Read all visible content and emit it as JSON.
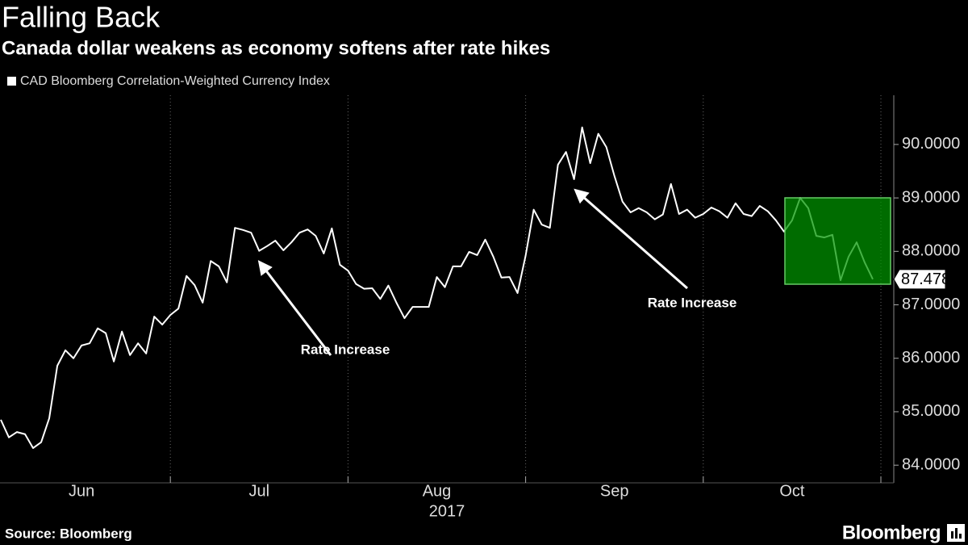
{
  "chart_data": {
    "type": "line",
    "title": "Falling Back",
    "subtitle": "Canada dollar weakens as economy softens after rate hikes",
    "xlabel": "2017",
    "source": "Source: Bloomberg",
    "brand": "Bloomberg",
    "categories": [
      null,
      null,
      null,
      null,
      null,
      null,
      null,
      null,
      null,
      null,
      "Jun",
      null,
      null,
      null,
      null,
      null,
      null,
      null,
      null,
      null,
      null,
      null,
      null,
      null,
      null,
      null,
      null,
      null,
      null,
      null,
      null,
      null,
      "Jul",
      null,
      null,
      null,
      null,
      null,
      null,
      null,
      null,
      null,
      null,
      null,
      null,
      null,
      null,
      null,
      null,
      null,
      null,
      null,
      null,
      null,
      "Aug",
      null,
      null,
      null,
      null,
      null,
      null,
      null,
      null,
      null,
      null,
      null,
      null,
      null,
      null,
      null,
      null,
      null,
      null,
      null,
      null,
      null,
      "Sep",
      null,
      null,
      null,
      null,
      null,
      null,
      null,
      null,
      null,
      null,
      null,
      null,
      null,
      null,
      null,
      null,
      null,
      null,
      null,
      null,
      null,
      "Oct",
      null,
      null,
      null,
      null,
      null,
      null,
      null,
      null,
      null,
      null
    ],
    "series": [
      {
        "name": "CAD Bloomberg Correlation-Weighted Currency Index",
        "color": "#ffffff",
        "values": [
          84.85,
          84.52,
          84.62,
          84.58,
          84.32,
          84.43,
          84.88,
          85.86,
          86.15,
          86.0,
          86.24,
          86.28,
          86.56,
          86.47,
          85.94,
          86.5,
          86.06,
          86.28,
          86.09,
          86.78,
          86.63,
          86.81,
          86.93,
          87.54,
          87.37,
          87.04,
          87.82,
          87.72,
          87.42,
          88.44,
          88.4,
          88.35,
          88.01,
          88.1,
          88.2,
          88.02,
          88.17,
          88.35,
          88.41,
          88.29,
          87.96,
          88.43,
          87.75,
          87.64,
          87.39,
          87.3,
          87.31,
          87.11,
          87.36,
          87.04,
          86.75,
          86.96,
          86.96,
          86.96,
          87.52,
          87.33,
          87.72,
          87.72,
          87.99,
          87.93,
          88.22,
          87.9,
          87.51,
          87.52,
          87.22,
          87.92,
          88.78,
          88.5,
          88.44,
          89.62,
          89.86,
          89.35,
          90.32,
          89.65,
          90.2,
          89.95,
          89.41,
          88.93,
          88.73,
          88.81,
          88.73,
          88.6,
          88.69,
          89.26,
          88.7,
          88.78,
          88.63,
          88.7,
          88.82,
          88.75,
          88.63,
          88.9,
          88.7,
          88.66,
          88.85,
          88.75,
          88.58,
          88.37,
          88.58,
          89.0,
          88.81,
          88.29,
          88.26,
          88.31,
          87.46,
          87.9,
          88.17,
          87.79,
          87.4786
        ]
      }
    ],
    "ylim": [
      83.67,
      90.92
    ],
    "yticks": [
      {
        "value": 84,
        "label": "84.0000"
      },
      {
        "value": 85,
        "label": "85.0000"
      },
      {
        "value": 86,
        "label": "86.0000"
      },
      {
        "value": 87,
        "label": "87.0000"
      },
      {
        "value": 88,
        "label": "88.0000"
      },
      {
        "value": 89,
        "label": "89.0000"
      },
      {
        "value": 90,
        "label": "90.0000"
      }
    ],
    "annotations": [
      {
        "text": "Rate Increase"
      },
      {
        "text": "Rate Increase"
      }
    ]
  }
}
